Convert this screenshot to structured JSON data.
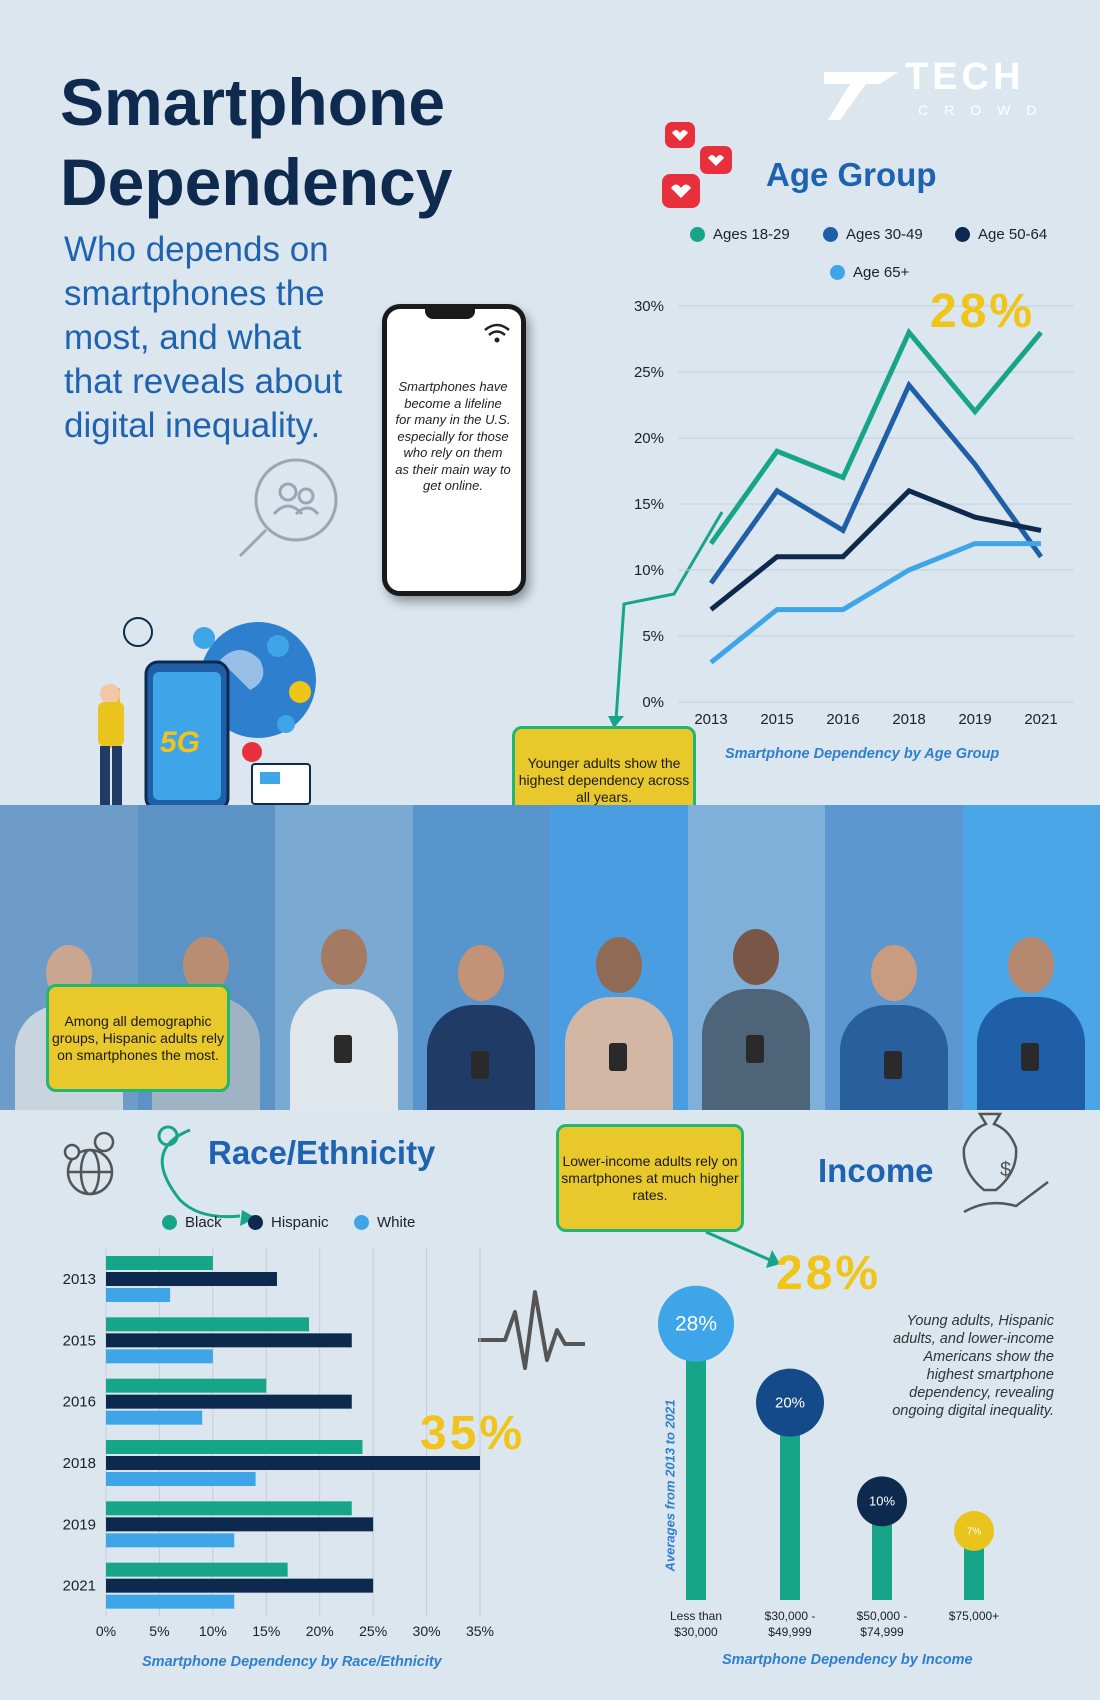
{
  "page": {
    "title_line1": "Smartphone",
    "title_line2": "Dependency",
    "subtitle": "Who depends on smartphones the most, and what that reveals about digital inequality.",
    "phone_text": "Smartphones have become a lifeline for many in the U.S. especially for those who rely on them as their main way to get online.",
    "logo_main": "TECH",
    "logo_sub": "CROWD",
    "icon_5g": "5G",
    "summary": "Young adults, Hispanic adults, and lower-income Americans show the highest smartphone dependency, revealing ongoing digital inequality."
  },
  "colors": {
    "teal": "#17a589",
    "mid_blue": "#1f5fa8",
    "navy": "#0d2a4e",
    "light_blue": "#3ea6e8",
    "yellow": "#f0c419",
    "callout_border": "#22b573"
  },
  "icons": [
    "hearts-icon",
    "magnifier-people-icon",
    "globe-pins-icon",
    "heartbeat-icon",
    "money-bag-hand-icon",
    "wifi-icon"
  ],
  "callouts": {
    "age": "Younger adults show the highest dependency across all years.",
    "race": "Among all demographic groups, Hispanic adults rely on smartphones the most.",
    "income": "Lower-income adults rely on smartphones at much higher rates."
  },
  "chart_data": [
    {
      "type": "line",
      "title": "Age Group",
      "caption": "Smartphone Dependency by Age Group",
      "highlight": "28%",
      "x": [
        "2013",
        "2015",
        "2016",
        "2018",
        "2019",
        "2021"
      ],
      "ylim": [
        0,
        30
      ],
      "yticks": [
        "0%",
        "5%",
        "10%",
        "15%",
        "20%",
        "25%",
        "30%"
      ],
      "grid": true,
      "legend_position": "top",
      "series": [
        {
          "name": "Ages 18-29",
          "color": "#17a589",
          "values": [
            12,
            19,
            17,
            28,
            22,
            28
          ]
        },
        {
          "name": "Ages 30-49",
          "color": "#1f5fa8",
          "values": [
            9,
            16,
            13,
            24,
            18,
            11
          ]
        },
        {
          "name": "Age 50-64",
          "color": "#0d2a4e",
          "values": [
            7,
            11,
            11,
            16,
            14,
            13
          ]
        },
        {
          "name": "Age 65+",
          "color": "#3ea6e8",
          "values": [
            3,
            7,
            7,
            10,
            12,
            12
          ]
        }
      ]
    },
    {
      "type": "bar",
      "orientation": "horizontal",
      "title": "Race/Ethnicity",
      "caption": "Smartphone Dependency by Race/Ethnicity",
      "highlight": "35%",
      "categories": [
        "2013",
        "2015",
        "2016",
        "2018",
        "2019",
        "2021"
      ],
      "xlim": [
        0,
        35
      ],
      "xticks": [
        "0%",
        "5%",
        "10%",
        "15%",
        "20%",
        "25%",
        "30%",
        "35%"
      ],
      "grid": true,
      "legend_position": "top",
      "series": [
        {
          "name": "Black",
          "color": "#17a589",
          "values": [
            10,
            19,
            15,
            24,
            23,
            17
          ]
        },
        {
          "name": "Hispanic",
          "color": "#0d2a4e",
          "values": [
            16,
            23,
            23,
            35,
            25,
            25
          ]
        },
        {
          "name": "White",
          "color": "#3ea6e8",
          "values": [
            6,
            10,
            9,
            14,
            12,
            12
          ]
        }
      ]
    },
    {
      "type": "bar",
      "title": "Income",
      "caption": "Smartphone Dependency by Income",
      "highlight": "28%",
      "ylabel": "Averages from 2013 to 2021",
      "categories": [
        [
          "Less than",
          "$30,000"
        ],
        [
          "$30,000 -",
          "$49,999"
        ],
        [
          "$50,000 -",
          "$74,999"
        ],
        [
          "$75,000+"
        ]
      ],
      "values": [
        28,
        20,
        10,
        7
      ],
      "labels": [
        "28%",
        "20%",
        "10%",
        "7%"
      ],
      "bubble_colors": [
        "#3ea6e8",
        "#154a8a",
        "#0d2a4e",
        "#e8c41c"
      ],
      "bar_color": "#17a589",
      "ylim": [
        0,
        30
      ]
    }
  ]
}
